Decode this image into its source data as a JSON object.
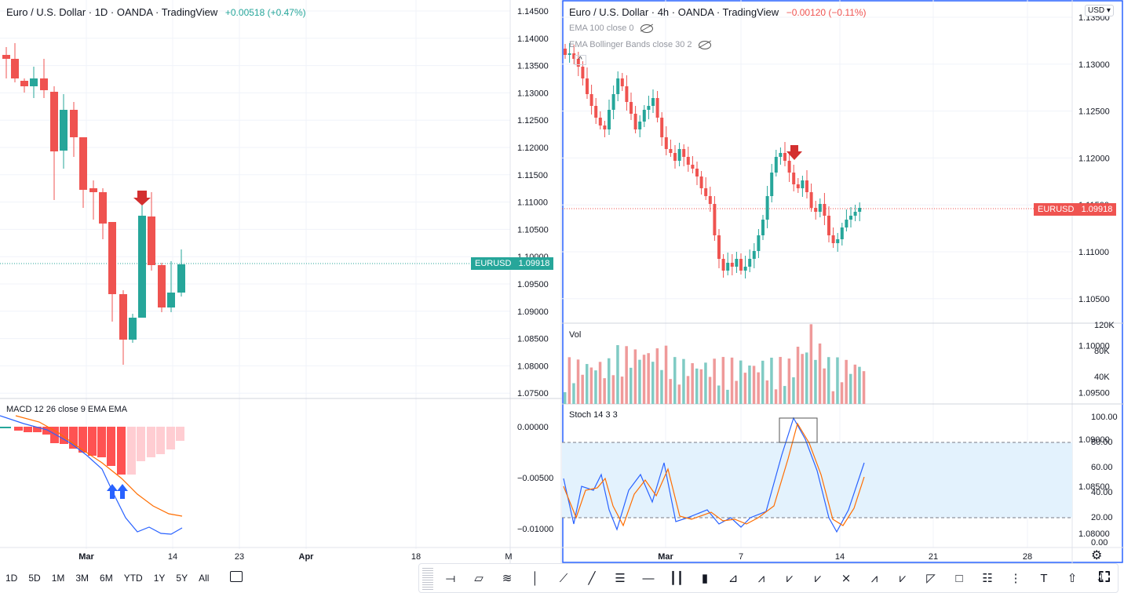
{
  "left_chart": {
    "symbol": "Euro / U.S. Dollar · 1D · OANDA · TradingView",
    "change": "+0.00518 (+0.47%)",
    "price_axis": [
      "1.14500",
      "1.14000",
      "1.13500",
      "1.13000",
      "1.12500",
      "1.12000",
      "1.11500",
      "1.11000",
      "1.10500",
      "1.10000",
      "1.09500",
      "1.09000",
      "1.08500",
      "1.08000",
      "1.07500"
    ],
    "price_tag_symbol": "EURUSD",
    "price_tag_value": "1.09918",
    "macd_title": "MACD 12 26 close 9 EMA EMA",
    "macd_axis": [
      "0.00000",
      "−0.00500",
      "−0.01000"
    ],
    "x_labels": [
      "Mar",
      "14",
      "23",
      "Apr",
      "18",
      "M"
    ],
    "colors": {
      "up": "#26a69a",
      "down": "#ef5350",
      "price_line": "#26a69a",
      "macd_line": "#2962ff",
      "signal_line": "#ff6d00",
      "hist_strong": "#ff5252",
      "hist_weak": "#ffcdd2",
      "arrow_down": "#d32f2f",
      "arrow_up": "#2962ff"
    }
  },
  "right_chart": {
    "symbol": "Euro / U.S. Dollar · 4h · OANDA · TradingView",
    "change": "−0.00120 (−0.11%)",
    "indicator1": "EMA 100 close 0",
    "indicator2": "EMA Bollinger Bands close 30 2",
    "currency_button": "USD",
    "price_axis": [
      "1.13500",
      "1.13000",
      "1.12500",
      "1.12000",
      "1.11500",
      "1.11000",
      "1.10500",
      "1.10000",
      "1.09500",
      "1.09000",
      "1.08500",
      "1.08000"
    ],
    "price_tag_symbol": "EURUSD",
    "price_tag_value": "1.09918",
    "vol_title": "Vol",
    "vol_axis": [
      "120K",
      "80K",
      "40K"
    ],
    "stoch_title": "Stoch 14 3 3",
    "stoch_axis": [
      "100.00",
      "80.00",
      "60.00",
      "40.00",
      "20.00",
      "0.00"
    ],
    "x_labels": [
      "Mar",
      "7",
      "14",
      "21",
      "28"
    ],
    "colors": {
      "up": "#26a69a",
      "down": "#ef5350",
      "vol_up": "#80cbc4",
      "vol_down": "#ef9a9a",
      "stoch_k": "#2962ff",
      "stoch_d": "#ff6d00",
      "stoch_band": "#e3f2fd",
      "frame": "#2962ff"
    }
  },
  "timeframes": [
    "1D",
    "5D",
    "1M",
    "3M",
    "6M",
    "YTD",
    "1Y",
    "5Y",
    "All"
  ],
  "drawing_tools": [
    "horizontal-ray-icon",
    "parallel-channel-icon",
    "fib-channel-icon",
    "vertical-line-icon",
    "trend-line-icon",
    "ray-icon",
    "pitchfork-icon",
    "horizontal-line-icon",
    "bars-pattern-icon",
    "long-position-icon",
    "gann-fan-icon",
    "xabcd-icon",
    "abcd-icon",
    "ace-pattern-icon",
    "elliott-wave-icon",
    "head-shoulders-icon",
    "wxy-icon",
    "triangle-icon",
    "rectangle-icon",
    "regression-icon",
    "forecast-icon",
    "text-icon",
    "arrow-up-icon",
    "arrow-down-icon"
  ],
  "drawing_tool_labels": {
    "wave15": "1 5",
    "abcd": "A C",
    "ae": "A E",
    "wy": "W Y"
  }
}
